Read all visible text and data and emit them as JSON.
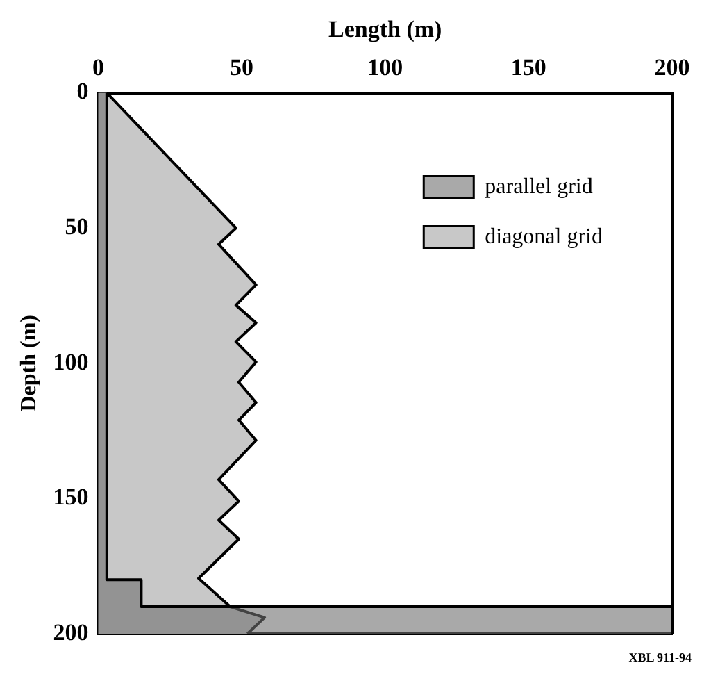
{
  "chart_data": {
    "type": "area",
    "orientation": "horizontal",
    "xlabel": "Length (m)",
    "ylabel": "Depth (m)",
    "xlim": [
      0,
      200
    ],
    "xticks": [
      0,
      50,
      100,
      150,
      200
    ],
    "ylim": [
      200,
      0
    ],
    "yticks": [
      0,
      50,
      100,
      150,
      200
    ],
    "grid": false,
    "legend": "top right",
    "annotations": [
      "XBL 911-94"
    ],
    "series": [
      {
        "name": "diagonal grid",
        "color": "#c8c8c8",
        "x": [
          0,
          50,
          56,
          71,
          78.5,
          85,
          92,
          99.5,
          107,
          114.5,
          121,
          128.5,
          143,
          151,
          158,
          165,
          179.5,
          190,
          194,
          200
        ],
        "values": [
          3,
          48,
          42,
          55,
          48,
          55,
          48,
          55,
          49,
          55,
          49,
          55,
          42,
          49,
          42,
          49,
          35,
          46,
          58,
          52
        ]
      },
      {
        "name": "parallel grid",
        "color": "#707070",
        "x": [
          0,
          180,
          180,
          190,
          190,
          200
        ],
        "values": [
          3,
          3,
          15,
          15,
          200,
          200
        ]
      }
    ]
  }
}
